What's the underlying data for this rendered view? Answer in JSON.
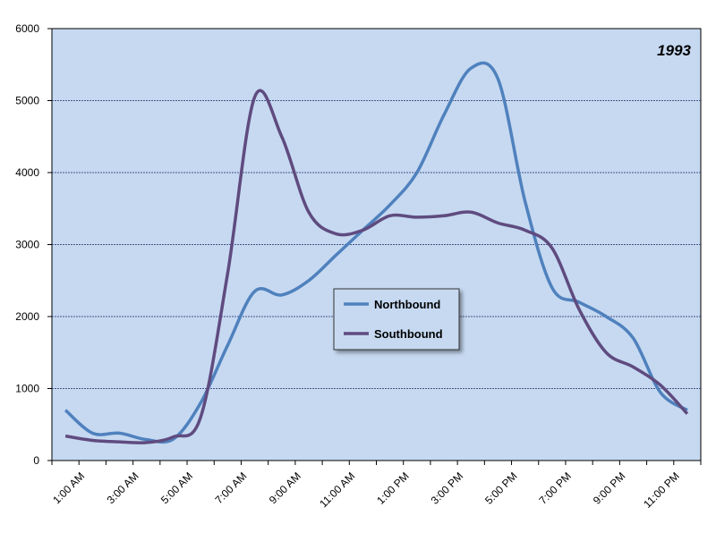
{
  "chart_data": {
    "type": "line",
    "title": "1993",
    "categories": [
      "1:00 AM",
      null,
      "3:00 AM",
      null,
      "5:00 AM",
      null,
      "7:00 AM",
      null,
      "9:00 AM",
      null,
      "11:00 AM",
      null,
      "1:00 PM",
      null,
      "3:00 PM",
      null,
      "5:00 PM",
      null,
      "7:00 PM",
      null,
      "9:00 PM",
      null,
      "11:00 PM",
      null
    ],
    "series": [
      {
        "name": "Northbound",
        "color": "#4f81bd",
        "values": [
          700,
          380,
          380,
          290,
          300,
          800,
          1600,
          2350,
          2300,
          2500,
          2850,
          3200,
          3550,
          4000,
          4800,
          5450,
          5300,
          3600,
          2400,
          2200,
          2000,
          1700,
          950,
          700
        ]
      },
      {
        "name": "Southbound",
        "color": "#5f4b7f",
        "values": [
          340,
          280,
          260,
          250,
          330,
          600,
          2600,
          5050,
          4500,
          3450,
          3150,
          3200,
          3400,
          3380,
          3400,
          3450,
          3300,
          3200,
          2950,
          2100,
          1500,
          1300,
          1050,
          650
        ]
      }
    ],
    "ylim": [
      0,
      6000
    ],
    "yticks": [
      0,
      1000,
      2000,
      3000,
      4000,
      5000,
      6000
    ],
    "grid": true
  }
}
